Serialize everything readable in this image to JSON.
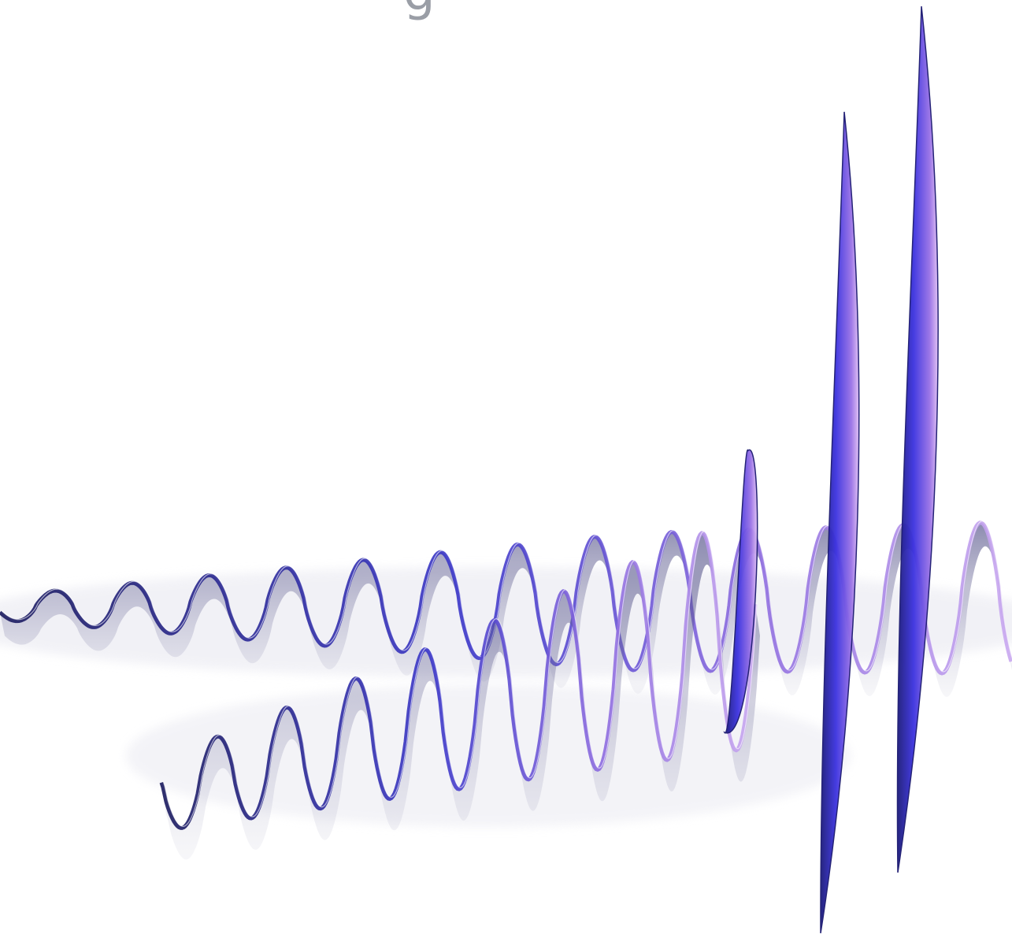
{
  "caption_fragment": "g"
}
